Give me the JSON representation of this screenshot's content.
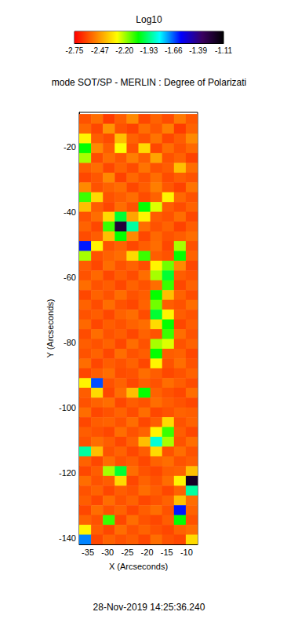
{
  "chart_data": {
    "type": "heatmap",
    "title": "mode SOT/SP - MERLIN : Degree of Polarizati",
    "annotation": "28-Nov-2019 14:25:36.240",
    "x_label": "X (Arcseconds)",
    "y_label": "Y (Arcseconds)",
    "xlim": [
      -37.2,
      -7.2
    ],
    "ylim": [
      -141.9,
      -9.4
    ],
    "xticks": [
      -35,
      -30,
      -25,
      -20,
      -15,
      -10
    ],
    "yticks": [
      -140,
      -120,
      -100,
      -80,
      -60,
      -40,
      -20
    ],
    "grid": false,
    "colorbar": {
      "label": "Log10",
      "range": [
        -2.75,
        -1.11
      ],
      "ticks": [
        -2.75,
        -2.47,
        {
          "value": -2.2,
          "label": "-2.20"
        },
        -1.93,
        -1.66,
        -1.39,
        -1.11
      ]
    },
    "x": [
      -35.7,
      -32.7,
      -29.7,
      -26.7,
      -23.7,
      -20.7,
      -17.7,
      -14.7,
      -11.7,
      -8.7
    ],
    "y": [
      -11.4,
      -14.4,
      -17.4,
      -20.4,
      -23.4,
      -26.4,
      -29.4,
      -32.4,
      -35.4,
      -38.4,
      -41.4,
      -44.4,
      -47.4,
      -50.4,
      -53.4,
      -56.4,
      -59.4,
      -62.4,
      -65.4,
      -68.4,
      -71.4,
      -74.4,
      -77.4,
      -80.4,
      -83.4,
      -86.4,
      -89.4,
      -92.4,
      -95.4,
      -98.4,
      -101.4,
      -104.4,
      -107.4,
      -110.4,
      -113.4,
      -116.4,
      -119.4,
      -122.4,
      -125.4,
      -128.4,
      -131.4,
      -134.4,
      -137.4,
      -140.4
    ],
    "values": [
      [
        -2.6,
        -2.55,
        -2.64,
        -2.58,
        -2.5,
        -2.62,
        -2.57,
        -2.61,
        -2.53,
        -2.59
      ],
      [
        -2.56,
        -2.62,
        -2.48,
        -2.6,
        -2.63,
        -2.55,
        -2.59,
        -2.52,
        -2.64,
        -2.57
      ],
      [
        -2.3,
        -2.58,
        -2.61,
        -2.4,
        -2.57,
        -2.6,
        -2.54,
        -2.62,
        -2.58,
        -2.5
      ],
      [
        -2.05,
        -2.5,
        -2.58,
        -2.28,
        -2.6,
        -2.35,
        -2.62,
        -2.55,
        -2.6,
        -2.56
      ],
      [
        -2.2,
        -2.61,
        -2.55,
        -2.59,
        -2.52,
        -2.58,
        -2.45,
        -2.6,
        -2.57,
        -2.63
      ],
      [
        -2.58,
        -2.55,
        -2.62,
        -2.57,
        -2.61,
        -2.54,
        -2.6,
        -2.58,
        -2.4,
        -2.55
      ],
      [
        -2.62,
        -2.59,
        -2.5,
        -2.63,
        -2.56,
        -2.6,
        -2.55,
        -2.61,
        -2.58,
        -2.6
      ],
      [
        -2.5,
        -2.6,
        -2.57,
        -2.55,
        -2.62,
        -2.58,
        -2.52,
        -2.59,
        -2.63,
        -2.54
      ],
      [
        -2.1,
        -2.35,
        -2.6,
        -2.58,
        -2.55,
        -2.61,
        -2.57,
        -2.3,
        -2.56,
        -2.6
      ],
      [
        -2.4,
        -2.58,
        -2.62,
        -2.55,
        -2.6,
        -2.05,
        -2.25,
        -2.58,
        -2.61,
        -2.57
      ],
      [
        -2.6,
        -2.55,
        -2.35,
        -2.0,
        -2.45,
        -2.3,
        -2.58,
        -2.6,
        -2.55,
        -2.62
      ],
      [
        -2.57,
        -2.62,
        -2.1,
        -1.25,
        -1.9,
        -2.55,
        -2.6,
        -2.57,
        -2.63,
        -2.58
      ],
      [
        -2.61,
        -2.58,
        -2.4,
        -2.05,
        -2.5,
        -2.62,
        -2.56,
        -2.6,
        -2.58,
        -2.55
      ],
      [
        -1.6,
        -2.3,
        -2.6,
        -2.57,
        -2.62,
        -2.58,
        -2.55,
        -2.62,
        -2.2,
        -2.6
      ],
      [
        -2.2,
        -2.6,
        -2.57,
        -2.55,
        -2.35,
        -2.1,
        -2.58,
        -2.6,
        -2.05,
        -2.57
      ],
      [
        -2.58,
        -2.62,
        -2.55,
        -2.6,
        -2.57,
        -2.61,
        -2.3,
        -2.15,
        -2.5,
        -2.62
      ],
      [
        -2.6,
        -2.56,
        -2.62,
        -2.58,
        -2.61,
        -2.55,
        -2.2,
        -2.0,
        -2.58,
        -2.6
      ],
      [
        -2.55,
        -2.6,
        -2.58,
        -2.62,
        -2.57,
        -2.6,
        -2.55,
        -2.1,
        -2.62,
        -2.57
      ],
      [
        -2.62,
        -2.57,
        -2.6,
        -2.55,
        -2.6,
        -2.58,
        -2.05,
        -2.4,
        -2.57,
        -2.61
      ],
      [
        -2.57,
        -2.61,
        -2.55,
        -2.6,
        -2.62,
        -2.57,
        -2.15,
        -2.58,
        -2.6,
        -2.55
      ],
      [
        -2.6,
        -2.58,
        -2.62,
        -2.57,
        -2.55,
        -2.61,
        -2.0,
        -2.3,
        -2.58,
        -2.6
      ],
      [
        -2.56,
        -2.62,
        -2.58,
        -2.6,
        -2.57,
        -2.55,
        -2.35,
        -2.05,
        -2.62,
        -2.58
      ],
      [
        -2.61,
        -2.55,
        -2.6,
        -2.58,
        -2.62,
        -2.57,
        -2.6,
        -2.1,
        -2.55,
        -2.6
      ],
      [
        -2.58,
        -2.6,
        -2.57,
        -2.62,
        -2.55,
        -2.6,
        -2.2,
        -2.25,
        -2.6,
        -2.57
      ],
      [
        -2.6,
        -2.57,
        -2.62,
        -2.55,
        -2.6,
        -2.58,
        -2.05,
        -2.58,
        -2.57,
        -2.62
      ],
      [
        -2.55,
        -2.62,
        -2.58,
        -2.6,
        -2.57,
        -2.62,
        -2.3,
        -2.6,
        -2.55,
        -2.6
      ],
      [
        -2.62,
        -2.58,
        -2.55,
        -2.61,
        -2.6,
        -2.55,
        -2.58,
        -2.62,
        -2.6,
        -2.57
      ],
      [
        -2.3,
        -1.65,
        -2.6,
        -2.57,
        -2.62,
        -2.58,
        -2.6,
        -2.55,
        -2.58,
        -2.61
      ],
      [
        -2.58,
        -2.35,
        -2.62,
        -2.55,
        -2.4,
        -2.05,
        -2.57,
        -2.6,
        -2.62,
        -2.55
      ],
      [
        -2.6,
        -2.57,
        -2.55,
        -2.62,
        -2.58,
        -2.6,
        -2.55,
        -2.58,
        -2.6,
        -2.62
      ],
      [
        -2.55,
        -2.62,
        -2.6,
        -2.57,
        -2.61,
        -2.55,
        -2.62,
        -2.6,
        -2.57,
        -2.58
      ],
      [
        -2.62,
        -2.58,
        -2.57,
        -2.6,
        -2.55,
        -2.62,
        -2.58,
        -2.35,
        -2.6,
        -2.57
      ],
      [
        -2.58,
        -2.6,
        -2.62,
        -2.55,
        -2.6,
        -2.57,
        -2.3,
        -2.1,
        -2.58,
        -2.62
      ],
      [
        -2.6,
        -2.55,
        -2.58,
        -2.62,
        -2.57,
        -2.4,
        -1.85,
        -2.2,
        -2.6,
        -2.55
      ],
      [
        -1.9,
        -2.4,
        -2.6,
        -2.57,
        -2.62,
        -2.58,
        -2.35,
        -2.6,
        -2.55,
        -2.6
      ],
      [
        -2.57,
        -2.62,
        -2.55,
        -2.6,
        -2.58,
        -2.62,
        -2.57,
        -2.55,
        -2.6,
        -2.58
      ],
      [
        -2.62,
        -2.58,
        -2.2,
        -2.0,
        -2.55,
        -2.6,
        -2.62,
        -2.58,
        -2.57,
        -2.4
      ],
      [
        -2.55,
        -2.6,
        -2.58,
        -2.35,
        -2.62,
        -2.57,
        -2.6,
        -2.55,
        -2.3,
        -1.2
      ],
      [
        -2.6,
        -2.57,
        -2.62,
        -2.58,
        -2.6,
        -2.55,
        -2.58,
        -2.62,
        -2.57,
        -1.9
      ],
      [
        -2.58,
        -2.62,
        -2.55,
        -2.6,
        -2.57,
        -2.62,
        -2.6,
        -2.57,
        -2.4,
        -2.55
      ],
      [
        -2.62,
        -2.55,
        -2.6,
        -2.57,
        -2.62,
        -2.58,
        -2.55,
        -2.6,
        -1.6,
        -2.57
      ],
      [
        -2.57,
        -2.6,
        -2.1,
        -2.62,
        -2.55,
        -2.6,
        -2.62,
        -2.58,
        -2.05,
        -2.6
      ],
      [
        -2.3,
        -2.58,
        -2.62,
        -2.55,
        -2.6,
        -2.57,
        -2.6,
        -2.62,
        -2.57,
        -2.55
      ],
      [
        -1.7,
        -2.62,
        -2.57,
        -2.6,
        -2.58,
        -2.62,
        -2.55,
        -2.6,
        -2.62,
        -2.35
      ]
    ]
  }
}
